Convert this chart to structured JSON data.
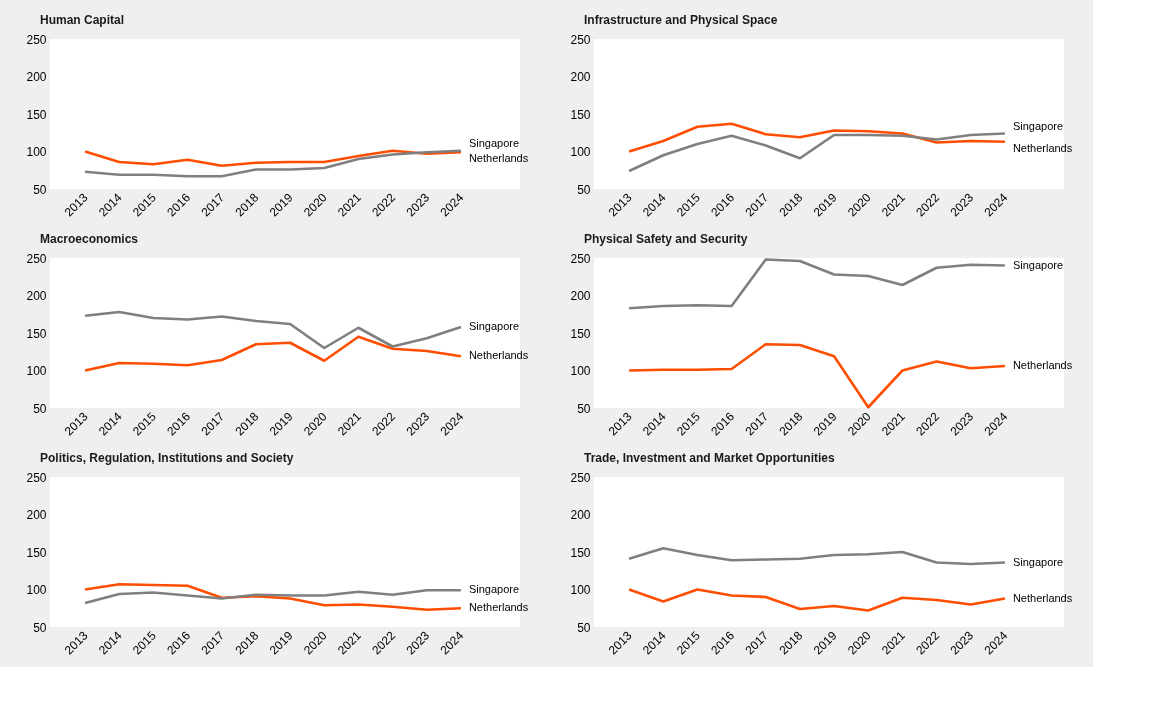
{
  "chart_data": [
    {
      "type": "line",
      "title": "Human Capital",
      "categories": [
        "2013",
        "2014",
        "2015",
        "2016",
        "2017",
        "2018",
        "2019",
        "2020",
        "2021",
        "2022",
        "2023",
        "2024"
      ],
      "ylim": [
        50,
        250
      ],
      "yticks": [
        50,
        100,
        150,
        200,
        250
      ],
      "series": [
        {
          "name": "Netherlands",
          "color": "#ff4e00",
          "values": [
            100,
            86,
            83,
            89,
            81,
            85,
            86,
            86,
            94,
            101,
            97,
            99
          ]
        },
        {
          "name": "Singapore",
          "color": "#7f7f7f",
          "values": [
            73,
            69,
            69,
            67,
            67,
            76,
            76,
            78,
            90,
            96,
            99,
            101
          ]
        }
      ]
    },
    {
      "type": "line",
      "title": "Infrastructure and Physical Space",
      "categories": [
        "2013",
        "2014",
        "2015",
        "2016",
        "2017",
        "2018",
        "2019",
        "2020",
        "2021",
        "2022",
        "2023",
        "2024"
      ],
      "ylim": [
        50,
        250
      ],
      "yticks": [
        50,
        100,
        150,
        200,
        250
      ],
      "series": [
        {
          "name": "Netherlands",
          "color": "#ff4e00",
          "values": [
            100,
            114,
            133,
            137,
            123,
            119,
            128,
            127,
            124,
            112,
            114,
            113
          ]
        },
        {
          "name": "Singapore",
          "color": "#7f7f7f",
          "values": [
            74,
            95,
            110,
            121,
            108,
            91,
            122,
            122,
            121,
            116,
            122,
            124
          ]
        }
      ]
    },
    {
      "type": "line",
      "title": "Macroeconomics",
      "categories": [
        "2013",
        "2014",
        "2015",
        "2016",
        "2017",
        "2018",
        "2019",
        "2020",
        "2021",
        "2022",
        "2023",
        "2024"
      ],
      "ylim": [
        50,
        250
      ],
      "yticks": [
        50,
        100,
        150,
        200,
        250
      ],
      "series": [
        {
          "name": "Netherlands",
          "color": "#ff4e00",
          "values": [
            100,
            110,
            109,
            107,
            114,
            135,
            137,
            113,
            145,
            129,
            126,
            119
          ]
        },
        {
          "name": "Singapore",
          "color": "#7f7f7f",
          "values": [
            173,
            178,
            170,
            168,
            172,
            166,
            162,
            130,
            157,
            132,
            143,
            158
          ]
        }
      ]
    },
    {
      "type": "line",
      "title": "Physical Safety and Security",
      "categories": [
        "2013",
        "2014",
        "2015",
        "2016",
        "2017",
        "2018",
        "2019",
        "2020",
        "2021",
        "2022",
        "2023",
        "2024"
      ],
      "ylim": [
        50,
        250
      ],
      "yticks": [
        50,
        100,
        150,
        200,
        250
      ],
      "series": [
        {
          "name": "Netherlands",
          "color": "#ff4e00",
          "values": [
            100,
            101,
            101,
            102,
            135,
            134,
            119,
            51,
            100,
            112,
            103,
            106
          ]
        },
        {
          "name": "Singapore",
          "color": "#7f7f7f",
          "values": [
            183,
            186,
            187,
            186,
            248,
            246,
            228,
            226,
            214,
            237,
            241,
            240
          ]
        }
      ]
    },
    {
      "type": "line",
      "title": "Politics, Regulation, Institutions and Society",
      "categories": [
        "2013",
        "2014",
        "2015",
        "2016",
        "2017",
        "2018",
        "2019",
        "2020",
        "2021",
        "2022",
        "2023",
        "2024"
      ],
      "ylim": [
        50,
        250
      ],
      "yticks": [
        50,
        100,
        150,
        200,
        250
      ],
      "series": [
        {
          "name": "Netherlands",
          "color": "#ff4e00",
          "values": [
            100,
            107,
            106,
            105,
            89,
            91,
            88,
            79,
            80,
            77,
            73,
            75
          ]
        },
        {
          "name": "Singapore",
          "color": "#7f7f7f",
          "values": [
            82,
            94,
            96,
            92,
            88,
            93,
            92,
            92,
            97,
            93,
            99,
            99
          ]
        }
      ]
    },
    {
      "type": "line",
      "title": "Trade, Investment and Market Opportunities",
      "categories": [
        "2013",
        "2014",
        "2015",
        "2016",
        "2017",
        "2018",
        "2019",
        "2020",
        "2021",
        "2022",
        "2023",
        "2024"
      ],
      "ylim": [
        50,
        250
      ],
      "yticks": [
        50,
        100,
        150,
        200,
        250
      ],
      "series": [
        {
          "name": "Netherlands",
          "color": "#ff4e00",
          "values": [
            100,
            84,
            100,
            92,
            90,
            74,
            78,
            72,
            89,
            86,
            80,
            88
          ]
        },
        {
          "name": "Singapore",
          "color": "#7f7f7f",
          "values": [
            141,
            155,
            146,
            139,
            140,
            141,
            146,
            147,
            150,
            136,
            134,
            136
          ]
        }
      ]
    }
  ]
}
